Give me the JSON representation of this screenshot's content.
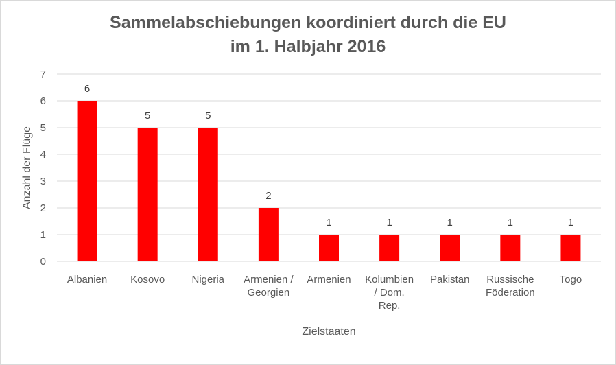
{
  "chart_data": {
    "type": "bar",
    "title": [
      "Sammelabschiebungen koordiniert durch die EU",
      "im 1. Halbjahr 2016"
    ],
    "xlabel": "Zielstaaten",
    "ylabel": "Anzahl der Flüge",
    "ylim": [
      0,
      7
    ],
    "yticks": [
      0,
      1,
      2,
      3,
      4,
      5,
      6,
      7
    ],
    "grid": true,
    "legend": "none",
    "categories": [
      [
        "Albanien"
      ],
      [
        "Kosovo"
      ],
      [
        "Nigeria"
      ],
      [
        "Armenien /",
        "Georgien"
      ],
      [
        "Armenien"
      ],
      [
        "Kolumbien",
        "/ Dom.",
        "Rep."
      ],
      [
        "Pakistan"
      ],
      [
        "Russische",
        "Föderation"
      ],
      [
        "Togo"
      ]
    ],
    "values": [
      6,
      5,
      5,
      2,
      1,
      1,
      1,
      1,
      1
    ],
    "bar_color": "#ff0000",
    "data_labels": true
  }
}
